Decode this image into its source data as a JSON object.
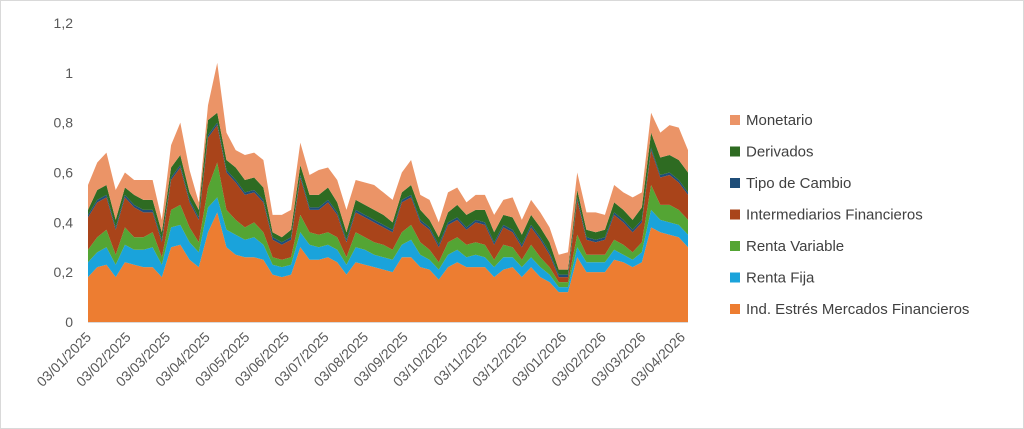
{
  "chart_data": {
    "type": "area",
    "stacked": true,
    "ylim": [
      0,
      1.2
    ],
    "yticks": [
      "0",
      "0,2",
      "0,4",
      "0,6",
      "0,8",
      "1",
      "1,2"
    ],
    "ytick_values": [
      0,
      0.2,
      0.4,
      0.6,
      0.8,
      1.0,
      1.2
    ],
    "grid": false,
    "legend_position": "right",
    "x_tick_labels": [
      "03/01/2025",
      "03/02/2025",
      "03/03/2025",
      "03/04/2025",
      "03/05/2025",
      "03/06/2025",
      "03/07/2025",
      "03/08/2025",
      "03/09/2025",
      "03/10/2025",
      "03/11/2025",
      "03/12/2025",
      "03/01/2026",
      "03/02/2026",
      "03/03/2026",
      "03/04/2026"
    ],
    "x": [
      "03/01/2025",
      "10/01/2025",
      "17/01/2025",
      "24/01/2025",
      "31/01/2025",
      "07/02/2025",
      "14/02/2025",
      "21/02/2025",
      "28/02/2025",
      "07/03/2025",
      "14/03/2025",
      "21/03/2025",
      "28/03/2025",
      "04/04/2025",
      "11/04/2025",
      "18/04/2025",
      "25/04/2025",
      "02/05/2025",
      "09/05/2025",
      "16/05/2025",
      "23/05/2025",
      "30/05/2025",
      "06/06/2025",
      "13/06/2025",
      "20/06/2025",
      "27/06/2025",
      "04/07/2025",
      "11/07/2025",
      "18/07/2025",
      "25/07/2025",
      "01/08/2025",
      "08/08/2025",
      "15/08/2025",
      "22/08/2025",
      "29/08/2025",
      "05/09/2025",
      "12/09/2025",
      "19/09/2025",
      "26/09/2025",
      "03/10/2025",
      "10/10/2025",
      "17/10/2025",
      "24/10/2025",
      "31/10/2025",
      "07/11/2025",
      "14/11/2025",
      "21/11/2025",
      "28/11/2025",
      "05/12/2025",
      "12/12/2025",
      "19/12/2025",
      "26/12/2025",
      "02/01/2026",
      "09/01/2026",
      "16/01/2026",
      "23/01/2026",
      "30/01/2026",
      "06/02/2026",
      "13/02/2026",
      "20/02/2026",
      "27/02/2026",
      "06/03/2026",
      "13/03/2026",
      "20/03/2026",
      "27/03/2026",
      "03/04/2026"
    ],
    "series": [
      {
        "name": "Ind. Estrés Mercados Financieros",
        "color": "#ED7D31",
        "values": [
          0.18,
          0.22,
          0.23,
          0.18,
          0.24,
          0.23,
          0.22,
          0.22,
          0.18,
          0.3,
          0.31,
          0.25,
          0.22,
          0.36,
          0.44,
          0.3,
          0.27,
          0.26,
          0.26,
          0.25,
          0.19,
          0.18,
          0.19,
          0.3,
          0.25,
          0.25,
          0.26,
          0.24,
          0.19,
          0.24,
          0.23,
          0.22,
          0.21,
          0.2,
          0.26,
          0.26,
          0.22,
          0.21,
          0.17,
          0.22,
          0.24,
          0.22,
          0.22,
          0.22,
          0.18,
          0.21,
          0.22,
          0.18,
          0.22,
          0.18,
          0.16,
          0.12,
          0.12,
          0.26,
          0.2,
          0.2,
          0.2,
          0.25,
          0.24,
          0.22,
          0.24,
          0.38,
          0.36,
          0.35,
          0.34,
          0.3
        ]
      },
      {
        "name": "Renta Fija",
        "color": "#1AA3DB",
        "values": [
          0.06,
          0.06,
          0.07,
          0.05,
          0.07,
          0.06,
          0.07,
          0.08,
          0.05,
          0.08,
          0.08,
          0.07,
          0.06,
          0.1,
          0.06,
          0.07,
          0.08,
          0.07,
          0.08,
          0.06,
          0.04,
          0.04,
          0.04,
          0.06,
          0.06,
          0.05,
          0.05,
          0.05,
          0.04,
          0.06,
          0.06,
          0.05,
          0.05,
          0.05,
          0.05,
          0.07,
          0.05,
          0.04,
          0.04,
          0.05,
          0.05,
          0.04,
          0.05,
          0.04,
          0.04,
          0.05,
          0.04,
          0.04,
          0.04,
          0.04,
          0.03,
          0.02,
          0.02,
          0.04,
          0.04,
          0.04,
          0.04,
          0.04,
          0.03,
          0.03,
          0.04,
          0.07,
          0.05,
          0.05,
          0.05,
          0.05
        ]
      },
      {
        "name": "Renta Variable",
        "color": "#54A534",
        "values": [
          0.05,
          0.06,
          0.07,
          0.04,
          0.07,
          0.05,
          0.05,
          0.06,
          0.03,
          0.07,
          0.08,
          0.06,
          0.04,
          0.08,
          0.14,
          0.08,
          0.06,
          0.05,
          0.06,
          0.05,
          0.03,
          0.03,
          0.03,
          0.07,
          0.05,
          0.05,
          0.05,
          0.05,
          0.03,
          0.06,
          0.05,
          0.05,
          0.05,
          0.04,
          0.05,
          0.06,
          0.05,
          0.04,
          0.03,
          0.05,
          0.05,
          0.05,
          0.05,
          0.05,
          0.03,
          0.05,
          0.04,
          0.03,
          0.05,
          0.04,
          0.03,
          0.02,
          0.02,
          0.05,
          0.03,
          0.03,
          0.03,
          0.04,
          0.04,
          0.03,
          0.04,
          0.1,
          0.06,
          0.07,
          0.06,
          0.06
        ]
      },
      {
        "name": "Intermediarios Financieros",
        "color": "#A9441A",
        "values": [
          0.13,
          0.14,
          0.13,
          0.1,
          0.12,
          0.12,
          0.1,
          0.08,
          0.06,
          0.12,
          0.15,
          0.1,
          0.09,
          0.2,
          0.15,
          0.15,
          0.15,
          0.13,
          0.12,
          0.12,
          0.07,
          0.06,
          0.07,
          0.15,
          0.09,
          0.1,
          0.12,
          0.09,
          0.06,
          0.08,
          0.08,
          0.08,
          0.07,
          0.07,
          0.12,
          0.11,
          0.08,
          0.08,
          0.06,
          0.07,
          0.07,
          0.06,
          0.08,
          0.08,
          0.06,
          0.07,
          0.06,
          0.05,
          0.07,
          0.07,
          0.05,
          0.02,
          0.02,
          0.14,
          0.06,
          0.05,
          0.06,
          0.1,
          0.09,
          0.08,
          0.08,
          0.14,
          0.11,
          0.12,
          0.11,
          0.1
        ]
      },
      {
        "name": "Tipo de Cambio",
        "color": "#1F4E79",
        "values": [
          0.01,
          0.01,
          0.01,
          0.01,
          0.01,
          0.01,
          0.01,
          0.01,
          0.01,
          0.01,
          0.01,
          0.01,
          0.01,
          0.01,
          0.01,
          0.01,
          0.01,
          0.01,
          0.01,
          0.01,
          0.01,
          0.01,
          0.01,
          0.01,
          0.01,
          0.01,
          0.01,
          0.01,
          0.01,
          0.01,
          0.01,
          0.01,
          0.01,
          0.01,
          0.01,
          0.01,
          0.01,
          0.01,
          0.01,
          0.01,
          0.01,
          0.01,
          0.01,
          0.01,
          0.01,
          0.01,
          0.01,
          0.01,
          0.01,
          0.01,
          0.01,
          0.01,
          0.01,
          0.01,
          0.01,
          0.01,
          0.01,
          0.01,
          0.01,
          0.01,
          0.01,
          0.01,
          0.01,
          0.01,
          0.01,
          0.01
        ]
      },
      {
        "name": "Derivados",
        "color": "#2E6B22",
        "values": [
          0.02,
          0.04,
          0.04,
          0.03,
          0.03,
          0.04,
          0.04,
          0.04,
          0.03,
          0.04,
          0.04,
          0.03,
          0.03,
          0.06,
          0.04,
          0.04,
          0.05,
          0.05,
          0.05,
          0.05,
          0.02,
          0.02,
          0.03,
          0.04,
          0.05,
          0.05,
          0.05,
          0.04,
          0.03,
          0.04,
          0.04,
          0.04,
          0.04,
          0.03,
          0.03,
          0.04,
          0.04,
          0.03,
          0.03,
          0.04,
          0.05,
          0.05,
          0.04,
          0.05,
          0.04,
          0.04,
          0.05,
          0.04,
          0.04,
          0.04,
          0.04,
          0.02,
          0.02,
          0.03,
          0.03,
          0.03,
          0.03,
          0.04,
          0.04,
          0.04,
          0.05,
          0.06,
          0.07,
          0.07,
          0.08,
          0.08
        ]
      },
      {
        "name": "Monetario",
        "color": "#EB9467",
        "values": [
          0.1,
          0.11,
          0.13,
          0.12,
          0.06,
          0.06,
          0.08,
          0.08,
          0.05,
          0.09,
          0.13,
          0.09,
          0.03,
          0.06,
          0.2,
          0.11,
          0.07,
          0.1,
          0.1,
          0.11,
          0.07,
          0.09,
          0.08,
          0.09,
          0.08,
          0.1,
          0.08,
          0.09,
          0.09,
          0.08,
          0.09,
          0.1,
          0.09,
          0.09,
          0.08,
          0.1,
          0.06,
          0.08,
          0.06,
          0.08,
          0.07,
          0.05,
          0.06,
          0.06,
          0.07,
          0.06,
          0.08,
          0.06,
          0.06,
          0.06,
          0.06,
          0.06,
          0.07,
          0.07,
          0.07,
          0.08,
          0.06,
          0.07,
          0.07,
          0.09,
          0.06,
          0.08,
          0.1,
          0.12,
          0.13,
          0.09
        ]
      }
    ]
  }
}
